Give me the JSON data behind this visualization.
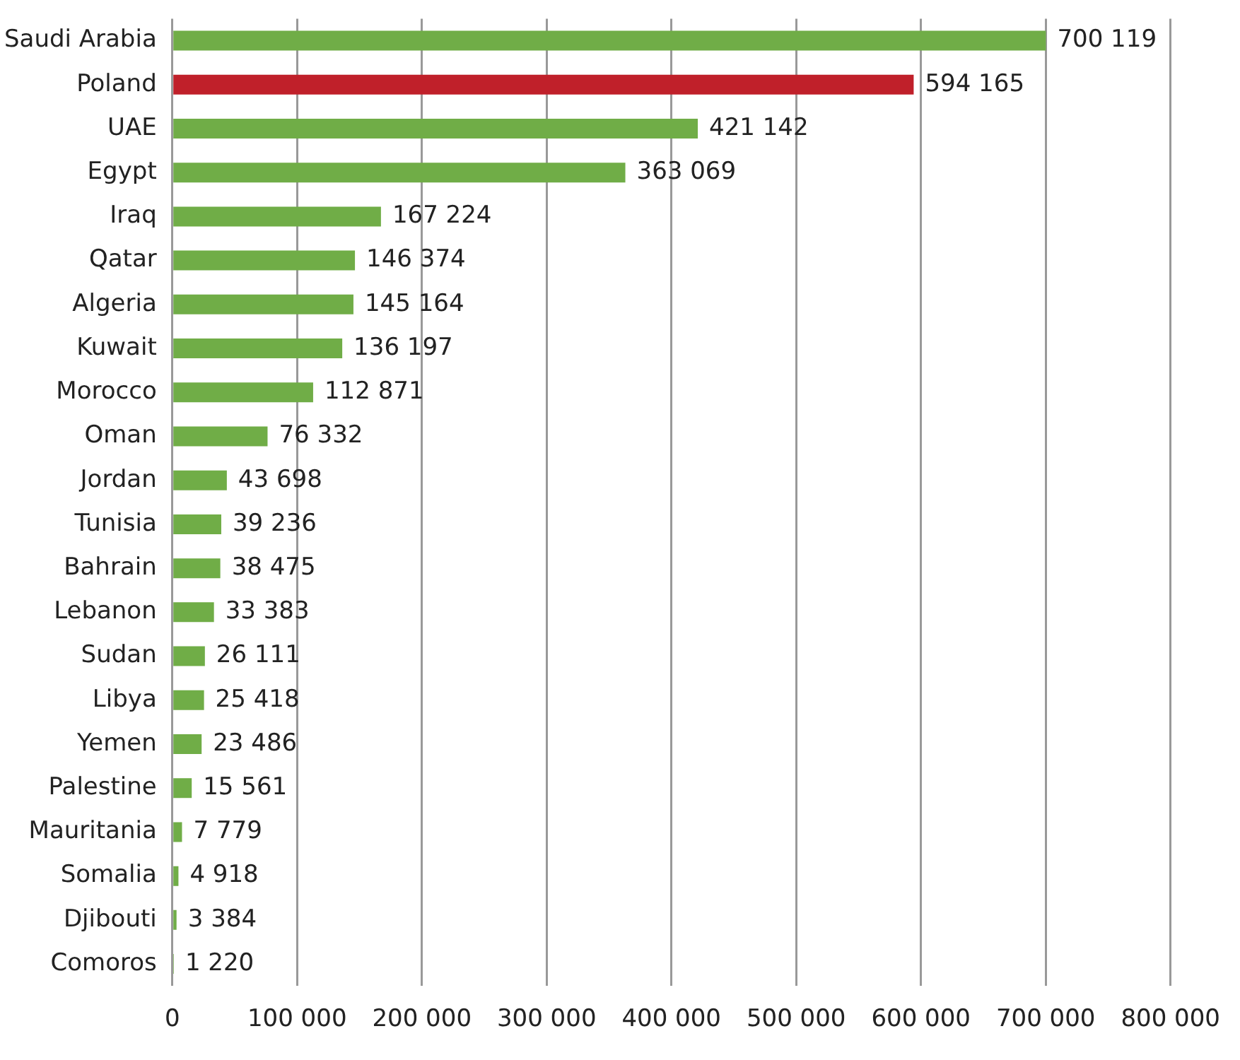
{
  "chart_data": {
    "type": "bar",
    "orientation": "horizontal",
    "categories": [
      "Saudi Arabia",
      "Poland",
      "UAE",
      "Egypt",
      "Iraq",
      "Qatar",
      "Algeria",
      "Kuwait",
      "Morocco",
      "Oman",
      "Jordan",
      "Tunisia",
      "Bahrain",
      "Lebanon",
      "Sudan",
      "Libya",
      "Yemen",
      "Palestine",
      "Mauritania",
      "Somalia",
      "Djibouti",
      "Comoros"
    ],
    "values": [
      700119,
      594165,
      421142,
      363069,
      167224,
      146374,
      145164,
      136197,
      112871,
      76332,
      43698,
      39236,
      38475,
      33383,
      26111,
      25418,
      23486,
      15561,
      7779,
      4918,
      3384,
      1220
    ],
    "colors": [
      "#70ad47",
      "#c0202a",
      "#70ad47",
      "#70ad47",
      "#70ad47",
      "#70ad47",
      "#70ad47",
      "#70ad47",
      "#70ad47",
      "#70ad47",
      "#70ad47",
      "#70ad47",
      "#70ad47",
      "#70ad47",
      "#70ad47",
      "#70ad47",
      "#70ad47",
      "#70ad47",
      "#70ad47",
      "#70ad47",
      "#70ad47",
      "#70ad47"
    ],
    "value_labels": [
      "700 119",
      "594 165",
      "421 142",
      "363 069",
      "167 224",
      "146 374",
      "145 164",
      "136 197",
      "112 871",
      "76 332",
      "43 698",
      "39 236",
      "38 475",
      "33 383",
      "26 111",
      "25 418",
      "23 486",
      "15 561",
      "7 779",
      "4 918",
      "3 384",
      "1 220"
    ],
    "xlim": [
      0,
      800000
    ],
    "xticks": [
      0,
      {
        "value": 100000,
        "label": "100 000"
      },
      {
        "value": 200000,
        "label": "200 000"
      },
      {
        "value": 300000,
        "label": "300 000"
      },
      {
        "value": 400000,
        "label": "400 000"
      },
      {
        "value": 500000,
        "label": "500 000"
      },
      {
        "value": 600000,
        "label": "600 000"
      },
      {
        "value": 700000,
        "label": "700 000"
      },
      {
        "value": 800000,
        "label": "800 000"
      }
    ],
    "grid": "x",
    "legend": false
  }
}
